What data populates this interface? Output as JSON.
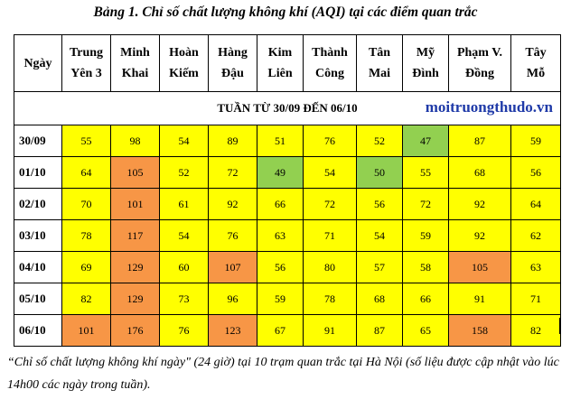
{
  "caption": "Bảng 1. Chỉ số chất lượng không khí (AQI) tại các điểm quan trắc",
  "header": {
    "corner": "Ngày",
    "stations": [
      [
        "Trung",
        "Yên 3"
      ],
      [
        "Minh",
        "Khai"
      ],
      [
        "Hoàn",
        "Kiếm"
      ],
      [
        "Hàng",
        "Đậu"
      ],
      [
        "Kim",
        "Liên"
      ],
      [
        "Thành",
        "Công"
      ],
      [
        "Tân",
        "Mai"
      ],
      [
        "Mỹ",
        "Đình"
      ],
      [
        "Phạm V.",
        "Đồng"
      ],
      [
        "Tây",
        "Mỗ"
      ]
    ]
  },
  "week_label": "TUẦN TỪ 30/09 ĐẾN 06/10",
  "watermark": "moitruongthudo.vn",
  "level_colors": {
    "moderate": "#ffff00",
    "good": "#92d050",
    "unhealthy_sensitive": "#f79646"
  },
  "rows": [
    {
      "date": "30/09",
      "values": [
        55,
        98,
        54,
        89,
        51,
        76,
        52,
        47,
        87,
        59
      ],
      "levels": [
        "y",
        "y",
        "y",
        "y",
        "y",
        "y",
        "y",
        "g",
        "y",
        "y"
      ]
    },
    {
      "date": "01/10",
      "values": [
        64,
        105,
        52,
        72,
        49,
        54,
        50,
        55,
        68,
        56
      ],
      "levels": [
        "y",
        "o",
        "y",
        "y",
        "g",
        "y",
        "g",
        "y",
        "y",
        "y"
      ]
    },
    {
      "date": "02/10",
      "values": [
        70,
        101,
        61,
        92,
        66,
        72,
        56,
        72,
        92,
        64
      ],
      "levels": [
        "y",
        "o",
        "y",
        "y",
        "y",
        "y",
        "y",
        "y",
        "y",
        "y"
      ]
    },
    {
      "date": "03/10",
      "values": [
        78,
        117,
        54,
        76,
        63,
        71,
        54,
        59,
        92,
        62
      ],
      "levels": [
        "y",
        "o",
        "y",
        "y",
        "y",
        "y",
        "y",
        "y",
        "y",
        "y"
      ]
    },
    {
      "date": "04/10",
      "values": [
        69,
        129,
        60,
        107,
        56,
        80,
        57,
        58,
        105,
        63
      ],
      "levels": [
        "y",
        "o",
        "y",
        "o",
        "y",
        "y",
        "y",
        "y",
        "o",
        "y"
      ]
    },
    {
      "date": "05/10",
      "values": [
        82,
        129,
        73,
        96,
        59,
        78,
        68,
        66,
        91,
        71
      ],
      "levels": [
        "y",
        "o",
        "y",
        "y",
        "y",
        "y",
        "y",
        "y",
        "y",
        "y"
      ]
    },
    {
      "date": "06/10",
      "values": [
        101,
        176,
        76,
        123,
        67,
        91,
        87,
        65,
        158,
        82
      ],
      "levels": [
        "o",
        "o",
        "y",
        "o",
        "y",
        "y",
        "y",
        "y",
        "o",
        "y"
      ]
    }
  ],
  "note": "“Chỉ số chất lượng không khí ngày\" (24 giờ) tại 10 trạm quan trắc tại Hà Nội (số liệu được cập nhật vào lúc 14h00 các ngày trong tuần)."
}
